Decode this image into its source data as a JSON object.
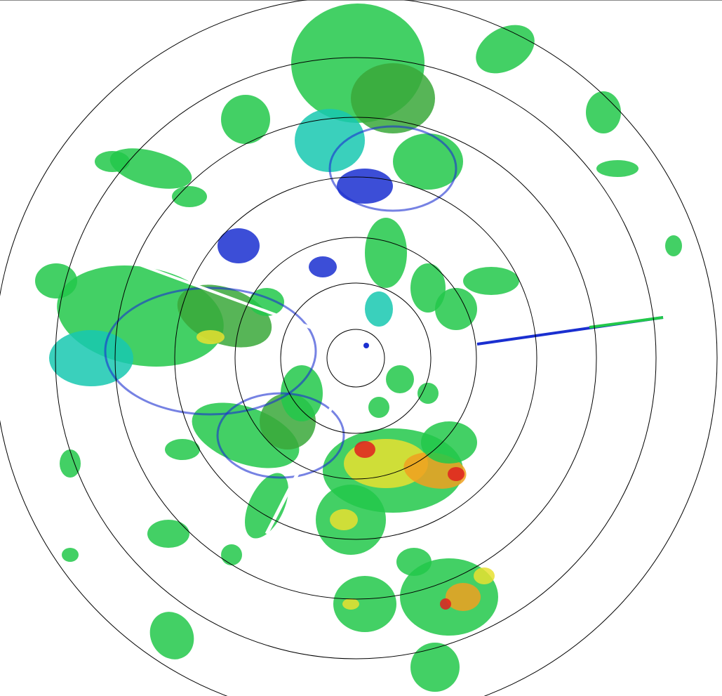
{
  "radar": {
    "colors": {
      "weak": "#1a2fd0",
      "light": "#18c8b0",
      "moderate": "#22c84a",
      "moderate_dark": "#3aa83a",
      "strong": "#e8e030",
      "heavy": "#f0a020",
      "intense": "#e02020",
      "ring": "#000000"
    },
    "range_rings": 7
  }
}
